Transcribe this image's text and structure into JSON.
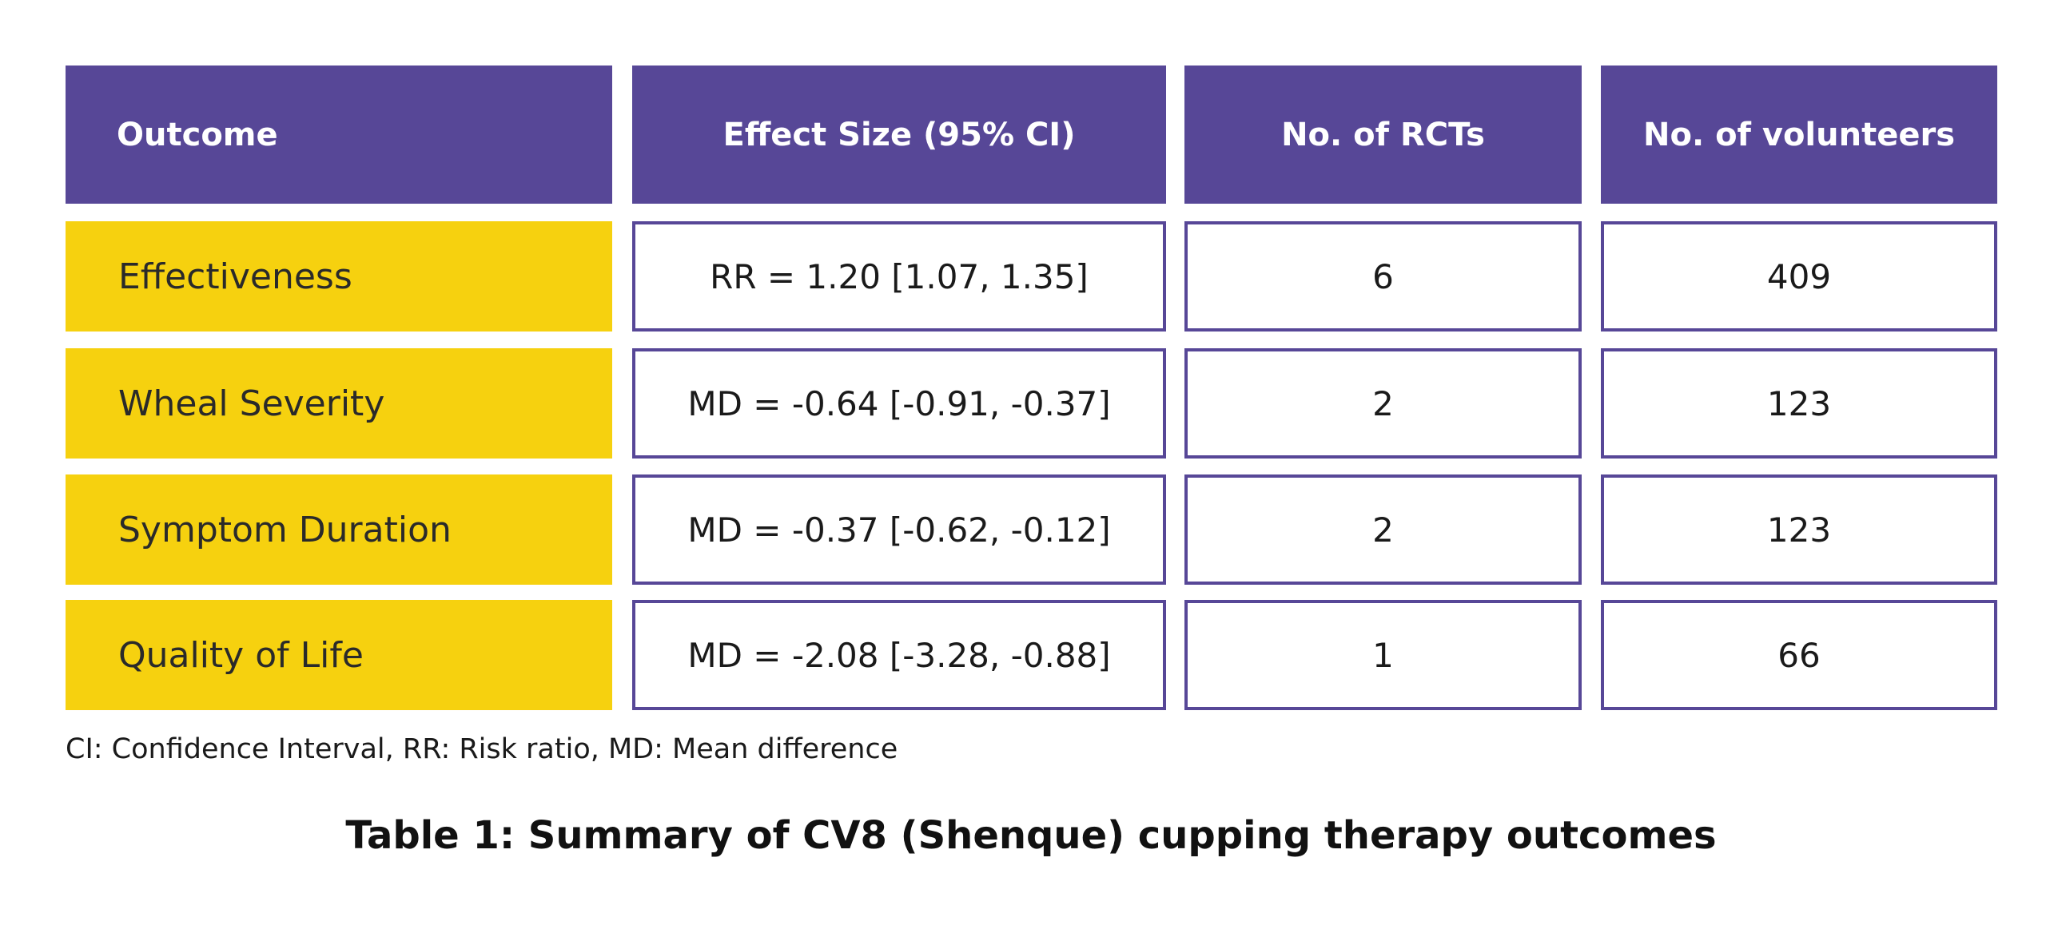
{
  "table": {
    "headers": [
      "Outcome",
      "Effect Size (95% CI)",
      "No. of RCTs",
      "No. of volunteers"
    ],
    "rows": [
      {
        "outcome": "Effectiveness",
        "effect": "RR = 1.20 [1.07, 1.35]",
        "rcts": "6",
        "volunteers": "409"
      },
      {
        "outcome": "Wheal Severity",
        "effect": "MD = -0.64 [-0.91, -0.37]",
        "rcts": "2",
        "volunteers": "123"
      },
      {
        "outcome": "Symptom Duration",
        "effect": "MD = -0.37 [-0.62, -0.12]",
        "rcts": "2",
        "volunteers": "123"
      },
      {
        "outcome": "Quality of Life",
        "effect": "MD = -2.08 [-3.28, -0.88]",
        "rcts": "1",
        "volunteers": "66"
      }
    ]
  },
  "footnote": "CI: Confidence Interval, RR: Risk ratio, MD: Mean difference",
  "caption": "Table 1: Summary of CV8 (Shenque) cupping therapy outcomes",
  "colors": {
    "header_bg": "#574797",
    "outcome_bg": "#f6d10f",
    "border": "#574797"
  }
}
